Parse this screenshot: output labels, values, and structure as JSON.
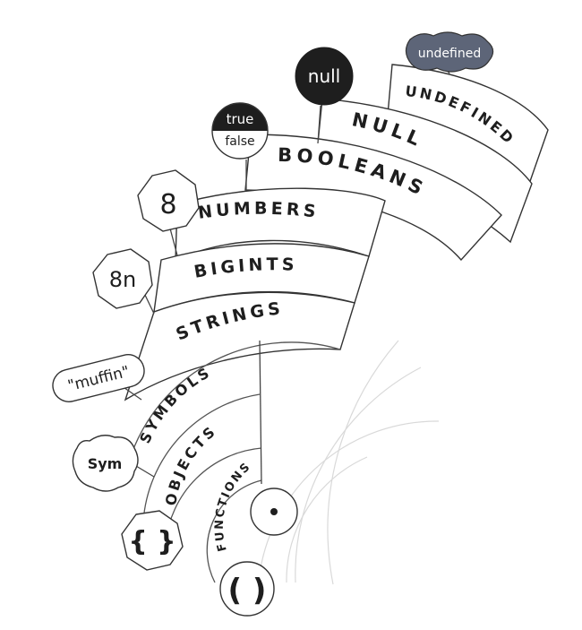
{
  "categories": {
    "undefined": "UNDEFINED",
    "null": "NULL",
    "booleans": "BOOLEANS",
    "numbers": "NUMBERS",
    "bigints": "BIGINTS",
    "strings": "STRINGS",
    "symbols": "SYMBOLS",
    "objects": "OBJECTS",
    "functions": "FUNCTIONS"
  },
  "examples": {
    "undefined": "undefined",
    "null": "null",
    "true": "true",
    "false": "false",
    "number": "8",
    "bigint": "8n",
    "string": "\"muffin\"",
    "symbol": "Sym",
    "object": "{ }",
    "function": "( )"
  },
  "colors": {
    "ink": "#1e1e1e",
    "outline": "#333333",
    "null_fill": "#1e1e1e",
    "undefined_fill": "#5d6578",
    "paper": "#ffffff"
  }
}
